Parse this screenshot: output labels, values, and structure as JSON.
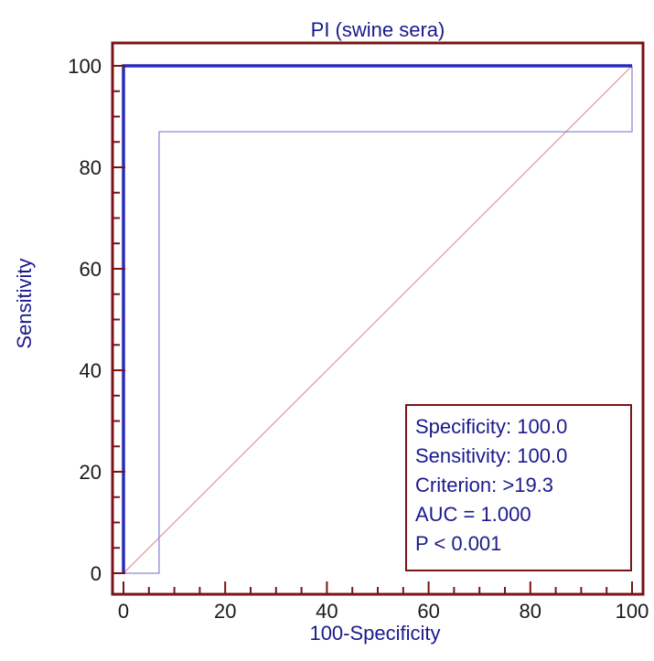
{
  "chart_data": {
    "type": "line",
    "title": "PI (swine sera)",
    "xlabel": "100-Specificity",
    "ylabel": "Sensitivity",
    "xlim": [
      0,
      100
    ],
    "ylim": [
      0,
      100
    ],
    "x_ticks": [
      0,
      20,
      40,
      60,
      80,
      100
    ],
    "y_ticks": [
      0,
      20,
      40,
      60,
      80,
      100
    ],
    "grid": false,
    "series": [
      {
        "color": "#2b2bb8",
        "line": "bold",
        "x": [
          0,
          0,
          100
        ],
        "y": [
          0,
          100,
          100
        ]
      },
      {
        "color": "#8a8ad8",
        "line": "thin",
        "x": [
          0,
          7,
          7,
          100,
          100
        ],
        "y": [
          0,
          0,
          87,
          87,
          100
        ]
      },
      {
        "color": "#d9a3a3",
        "line": "thin",
        "x": [
          0,
          100
        ],
        "y": [
          0,
          100
        ]
      }
    ],
    "stats_box": {
      "placement": "bottom-right",
      "lines": [
        "Specificity: 100.0",
        "Sensitivity: 100.0",
        "Criterion: >19.3",
        "AUC = 1.000",
        "P < 0.001"
      ]
    },
    "frame_color": "#7a1414"
  }
}
